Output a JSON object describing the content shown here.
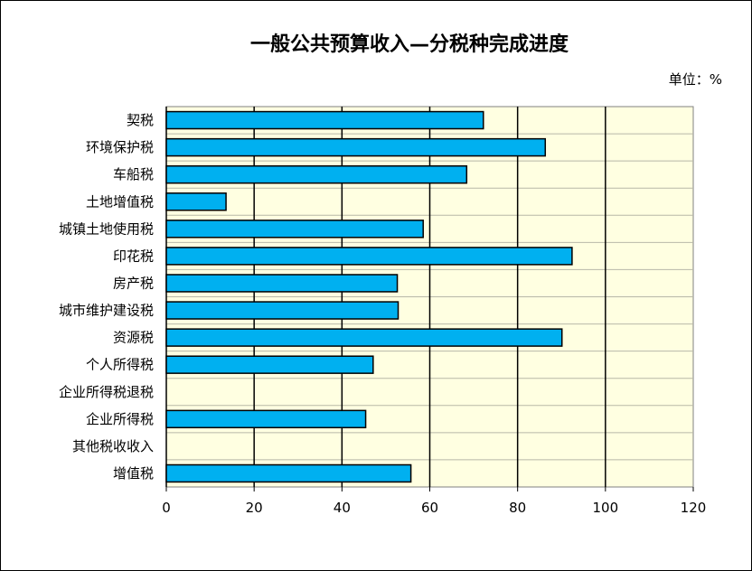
{
  "chart_data": {
    "type": "bar",
    "orientation": "horizontal",
    "title": "一般公共预算收入—分税种完成进度",
    "unit_label": "单位：%",
    "categories": [
      "契税",
      "环境保护税",
      "车船税",
      "土地增值税",
      "城镇土地使用税",
      "印花税",
      "房产税",
      "城市维护建设税",
      "资源税",
      "个人所得税",
      "企业所得税退税",
      "企业所得税",
      "其他税收收入",
      "增值税"
    ],
    "values": [
      72.2,
      86.3,
      68.4,
      13.6,
      58.5,
      92.4,
      52.6,
      52.8,
      90.1,
      47.1,
      null,
      45.4,
      null,
      55.7
    ],
    "xlim": [
      0,
      120
    ],
    "xticks": [
      "0",
      "20",
      "40",
      "60",
      "80",
      "100",
      "120"
    ],
    "grid": true,
    "legend": "none",
    "colors": {
      "bar": "#00b0f0",
      "plot_bg": "#ffffe1",
      "bar_stroke": "#000000"
    }
  }
}
